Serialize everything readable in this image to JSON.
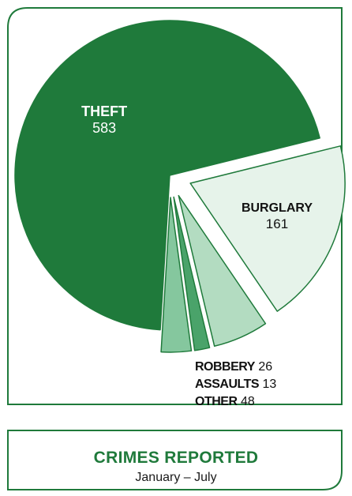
{
  "chart_data": {
    "type": "pie",
    "title": "CRIMES REPORTED",
    "subtitle": "January – July",
    "slices": [
      {
        "label": "THEFT",
        "value": 583,
        "color": "#1f7a3b"
      },
      {
        "label": "BURGLARY",
        "value": 161,
        "color": "#e6f3ea"
      },
      {
        "label": "OTHER",
        "value": 48,
        "color": "#b3dcc1"
      },
      {
        "label": "ASSAULTS",
        "value": 13,
        "color": "#4aa36a"
      },
      {
        "label": "ROBBERY",
        "value": 26,
        "color": "#85c79e"
      }
    ],
    "legend": [
      {
        "label": "ROBBERY",
        "value": "26"
      },
      {
        "label": "ASSAULTS",
        "value": "13"
      },
      {
        "label": "OTHER",
        "value": "48"
      }
    ]
  },
  "theme": {
    "frame_color": "#1f7a3b",
    "slice_stroke": "#1f7a3b"
  }
}
